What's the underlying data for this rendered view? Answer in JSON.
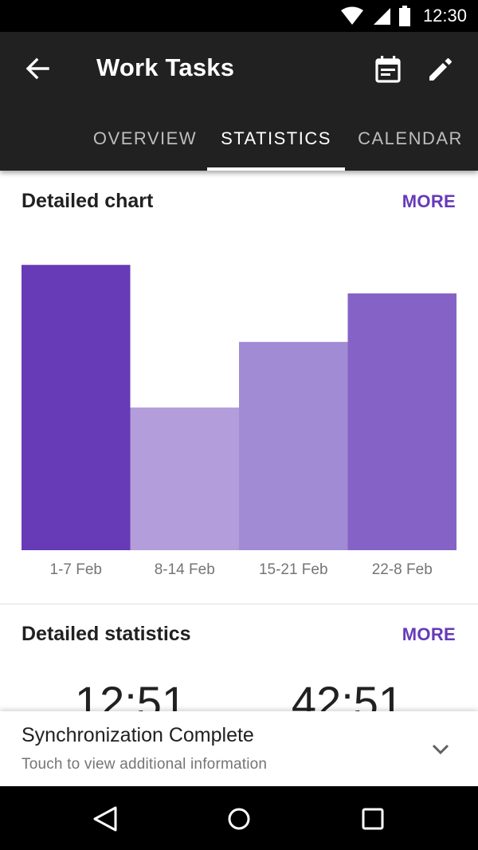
{
  "status_bar": {
    "time": "12:30",
    "icons": [
      "wifi-icon",
      "signal-icon",
      "battery-icon"
    ]
  },
  "app_bar": {
    "title": "Work Tasks",
    "icons": [
      "back-arrow-icon",
      "calendar-icon",
      "edit-pencil-icon"
    ],
    "background": "#212121"
  },
  "tabs": [
    {
      "label": "OVERVIEW",
      "active": false
    },
    {
      "label": "STATISTICS",
      "active": true
    },
    {
      "label": "CALENDAR",
      "active": false
    }
  ],
  "detailed_chart": {
    "title": "Detailed chart",
    "more_label": "MORE"
  },
  "chart_data": {
    "type": "bar",
    "categories": [
      "1-7 Feb",
      "8-14 Feb",
      "15-21 Feb",
      "22-8 Feb"
    ],
    "values": [
      100,
      50,
      73,
      90
    ],
    "colors": [
      "#673ab7",
      "#b39ddb",
      "#a18bd4",
      "#8563c6"
    ],
    "ylim": [
      0,
      109
    ],
    "grid": false,
    "legend": "none"
  },
  "detailed_statistics": {
    "title": "Detailed statistics",
    "more_label": "MORE",
    "values": [
      "12:51",
      "42:51"
    ]
  },
  "snackbar": {
    "title": "Synchronization Complete",
    "subtitle": "Touch to view additional information",
    "icon": "chevron-down-icon"
  },
  "nav_bar": {
    "icons": [
      "nav-back-icon",
      "nav-home-icon",
      "nav-recents-icon"
    ]
  },
  "accent_color": "#673ab7"
}
